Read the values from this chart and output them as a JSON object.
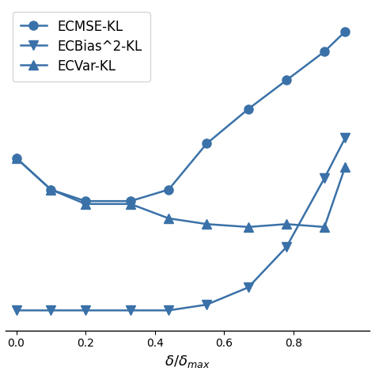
{
  "x": [
    0.0,
    0.1,
    0.2,
    0.33,
    0.44,
    0.55,
    0.67,
    0.78,
    0.89,
    0.95
  ],
  "ecmse": [
    0.55,
    0.44,
    0.4,
    0.4,
    0.44,
    0.6,
    0.72,
    0.82,
    0.92,
    0.99
  ],
  "ecbias2": [
    0.02,
    0.02,
    0.02,
    0.02,
    0.02,
    0.04,
    0.1,
    0.24,
    0.48,
    0.62
  ],
  "ecvar": [
    0.55,
    0.44,
    0.39,
    0.39,
    0.34,
    0.32,
    0.31,
    0.32,
    0.31,
    0.52
  ],
  "color": "#3a71a8",
  "line_width": 1.8,
  "marker_size": 8,
  "xlabel": "$\\delta/\\delta_{max}$",
  "legend_labels": [
    "ECMSE-KL",
    "ECBias^2-KL",
    "ECVar-KL"
  ],
  "xlim": [
    -0.03,
    1.02
  ],
  "ylim": [
    -0.05,
    1.08
  ],
  "background": "#ffffff",
  "label_fontsize": 13,
  "legend_fontsize": 12,
  "xticks": [
    0.0,
    0.2,
    0.4,
    0.6,
    0.8
  ]
}
